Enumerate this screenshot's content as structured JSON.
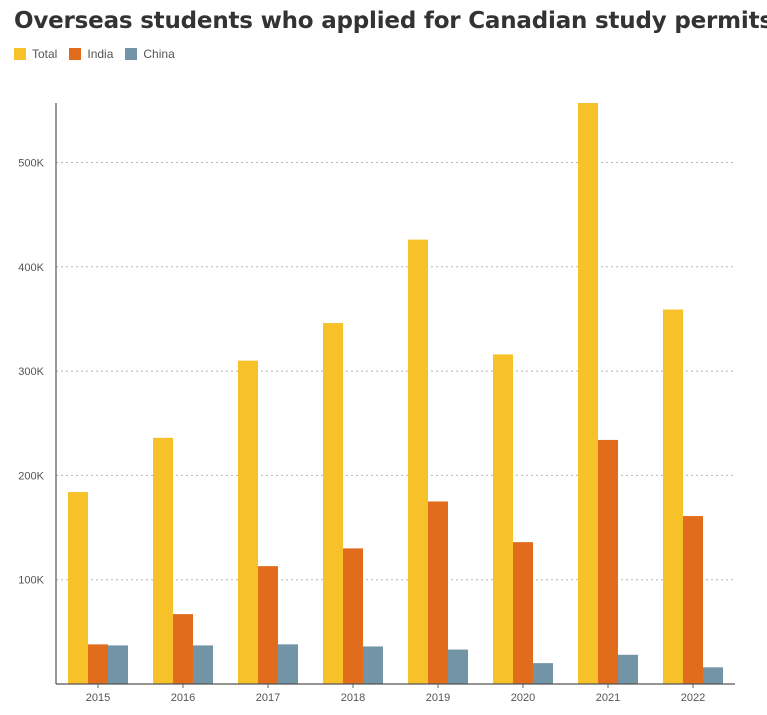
{
  "chart_data": {
    "type": "bar",
    "title": "Overseas students who applied for Canadian study permits",
    "xlabel": "",
    "ylabel": "",
    "categories": [
      "2015",
      "2016",
      "2017",
      "2018",
      "2019",
      "2020",
      "2021",
      "2022"
    ],
    "series": [
      {
        "name": "Total",
        "color": "#f7c12a",
        "values": [
          184000,
          236000,
          310000,
          346000,
          426000,
          316000,
          557000,
          359000
        ]
      },
      {
        "name": "India",
        "color": "#e06c1c",
        "values": [
          38000,
          67000,
          113000,
          130000,
          175000,
          136000,
          234000,
          161000
        ]
      },
      {
        "name": "China",
        "color": "#7393a7",
        "values": [
          37000,
          37000,
          38000,
          36000,
          33000,
          20000,
          28000,
          16000
        ]
      }
    ],
    "ylim": [
      0,
      557000
    ],
    "yticks": [
      100000,
      200000,
      300000,
      400000,
      500000
    ],
    "ytick_labels": [
      "100K",
      "200K",
      "300K",
      "400K",
      "500K"
    ],
    "grid": true,
    "legend_position": "top-left"
  }
}
